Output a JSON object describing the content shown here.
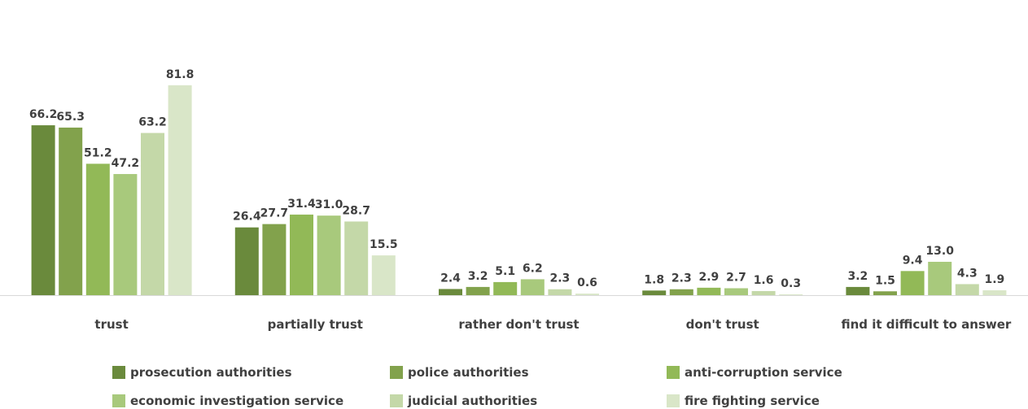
{
  "chart_data": {
    "type": "bar",
    "categories": [
      "trust",
      "partially trust",
      "rather don't trust",
      "don't trust",
      "find it difficult to answer"
    ],
    "series": [
      {
        "name": "prosecution authorities",
        "color": "#6a8a3c",
        "values": [
          66.2,
          26.4,
          2.4,
          1.8,
          3.2
        ]
      },
      {
        "name": "police authorities",
        "color": "#82a24c",
        "values": [
          65.3,
          27.7,
          3.2,
          2.3,
          1.5
        ]
      },
      {
        "name": "anti-corruption service",
        "color": "#92b957",
        "values": [
          51.2,
          31.4,
          5.1,
          2.9,
          9.4
        ]
      },
      {
        "name": "economic investigation service",
        "color": "#a8c97c",
        "values": [
          47.2,
          31.0,
          6.2,
          2.7,
          13.0
        ]
      },
      {
        "name": "judicial authorities",
        "color": "#c4d8a8",
        "values": [
          63.2,
          28.7,
          2.3,
          1.6,
          4.3
        ]
      },
      {
        "name": "fire fighting service",
        "color": "#d9e6c8",
        "values": [
          81.8,
          15.5,
          0.6,
          0.3,
          1.9
        ]
      }
    ],
    "ylim": [
      0,
      100
    ],
    "grid": false,
    "legend_position": "bottom",
    "data_labels": true
  }
}
